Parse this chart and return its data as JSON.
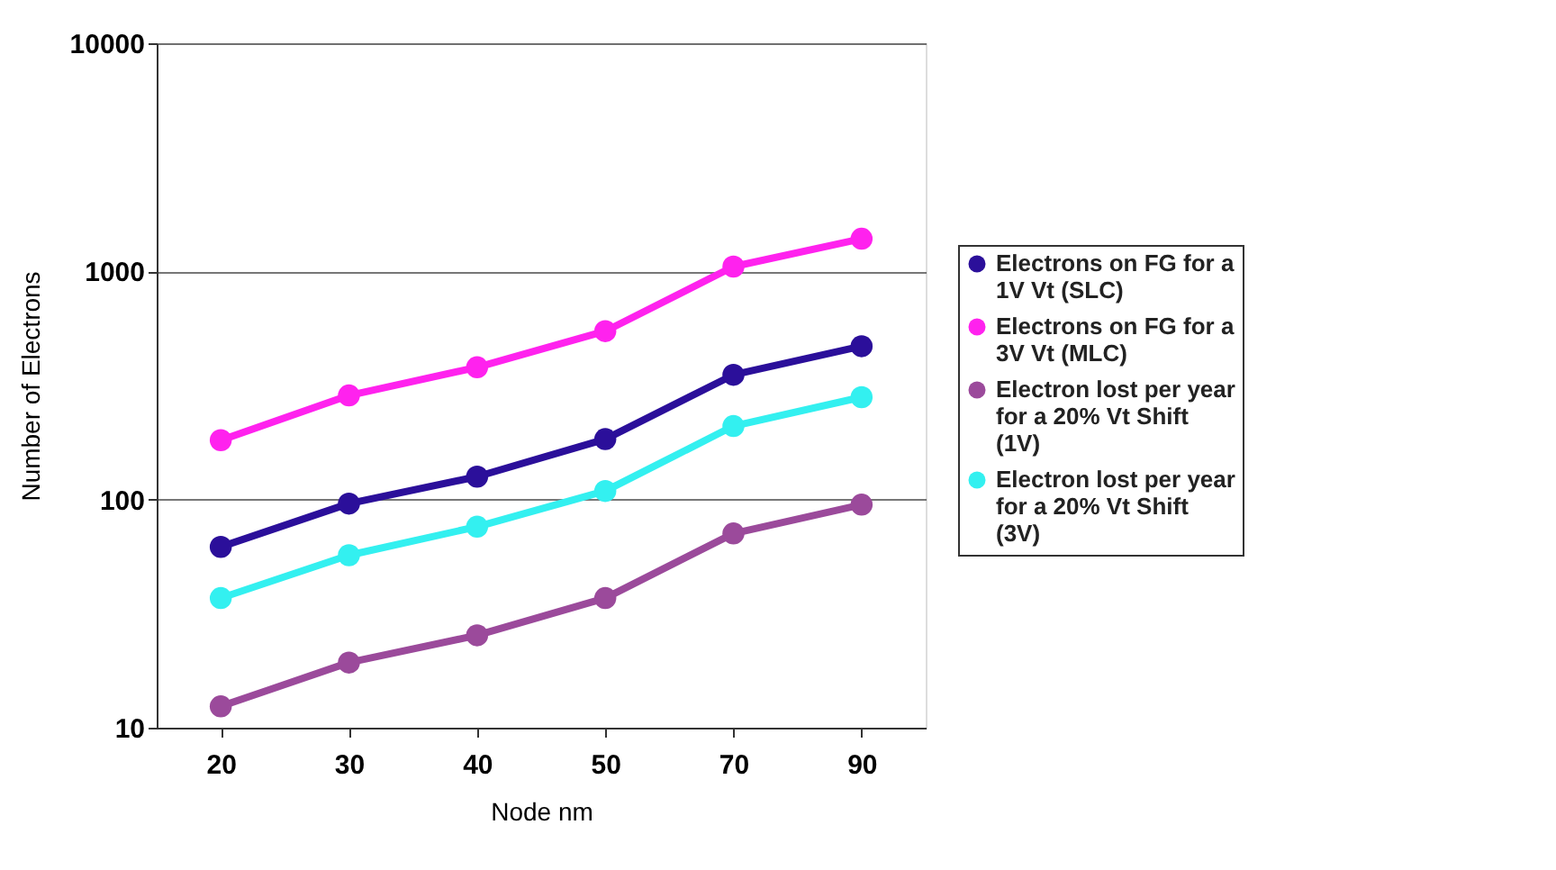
{
  "chart_data": {
    "type": "line",
    "xlabel": "Node nm",
    "ylabel": "Number of Electrons",
    "categories": [
      "20",
      "30",
      "40",
      "50",
      "70",
      "90"
    ],
    "series": [
      {
        "name": "Electrons on FG for a 1V Vt (SLC)",
        "color": "#2b0f9a",
        "values": [
          62,
          96,
          126,
          184,
          352,
          470
        ]
      },
      {
        "name": "Electrons on FG for a 3V Vt (MLC)",
        "color": "#ff22ee",
        "values": [
          182,
          286,
          380,
          547,
          1050,
          1390
        ]
      },
      {
        "name": "Electron lost per year for a 20% Vt Shift (1V)",
        "color": "#9b4a9b",
        "values": [
          12.4,
          19.3,
          25.4,
          37,
          71,
          95
        ]
      },
      {
        "name": "Electron lost per year for a 20% Vt Shift (3V)",
        "color": "#33f0f0",
        "values": [
          37,
          57,
          76,
          109,
          210,
          281
        ]
      }
    ],
    "log": "y",
    "ylim": [
      10,
      10000
    ],
    "yticks": [
      10,
      100,
      1000,
      10000
    ],
    "grid": "y",
    "legend": "right",
    "marker": "circle",
    "line_style": "solid"
  }
}
